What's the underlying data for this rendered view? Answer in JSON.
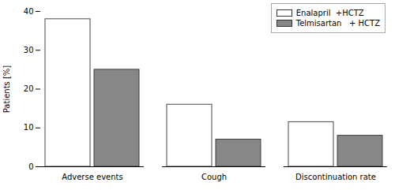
{
  "chart_data": {
    "type": "bar",
    "categories": [
      "Adverse events",
      "Cough",
      "Discontinuation rate"
    ],
    "series": [
      {
        "name": "Enalapril  +HCTZ",
        "color": "#ffffff",
        "values": [
          38,
          16,
          11.5
        ]
      },
      {
        "name": "Telmisartan   + HCTZ",
        "color": "#878787",
        "values": [
          25,
          7,
          8
        ]
      }
    ],
    "ylabel": "Patients [%]",
    "ylim": [
      0,
      40
    ],
    "yticks": [
      0,
      10,
      20,
      30,
      40
    ],
    "grid": false,
    "legend": "upper right"
  }
}
